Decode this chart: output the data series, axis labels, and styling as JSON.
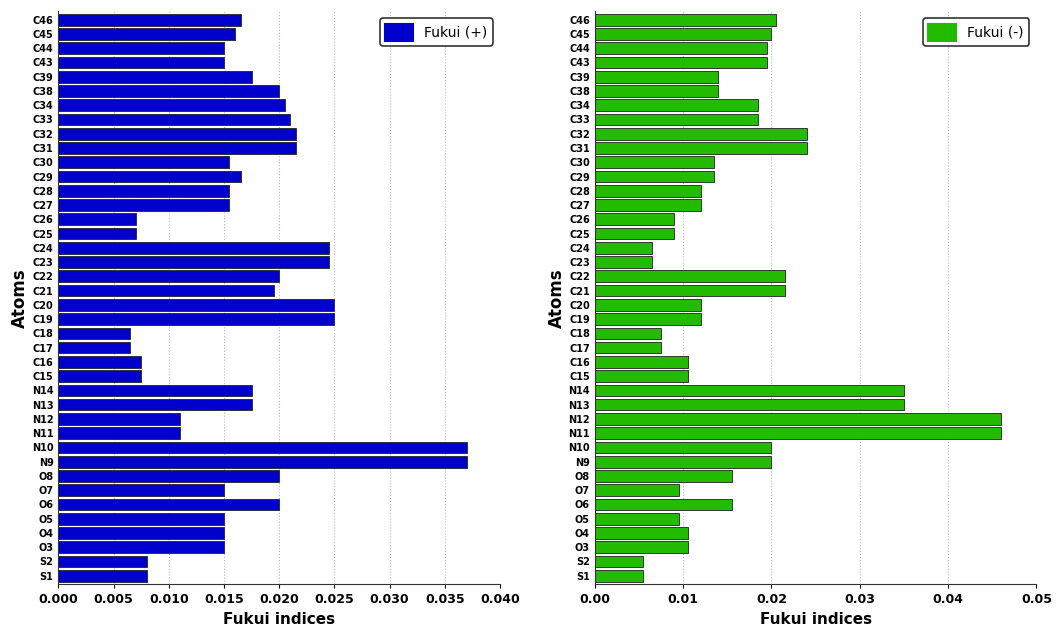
{
  "atoms": [
    "S1",
    "S2",
    "O3",
    "O4",
    "O5",
    "O6",
    "O7",
    "O8",
    "N9",
    "N10",
    "N11",
    "N12",
    "N13",
    "N14",
    "C15",
    "C16",
    "C17",
    "C18",
    "C19",
    "C20",
    "C21",
    "C22",
    "C23",
    "C24",
    "C25",
    "C26",
    "C27",
    "C28",
    "C29",
    "C30",
    "C31",
    "C32",
    "C33",
    "C34",
    "C38",
    "C39",
    "C43",
    "C44",
    "C45",
    "C46"
  ],
  "fukui_plus": [
    0.008,
    0.008,
    0.015,
    0.015,
    0.015,
    0.02,
    0.015,
    0.02,
    0.037,
    0.037,
    0.011,
    0.011,
    0.0175,
    0.0175,
    0.0075,
    0.0075,
    0.0065,
    0.0065,
    0.025,
    0.025,
    0.0195,
    0.02,
    0.0245,
    0.0245,
    0.007,
    0.007,
    0.0155,
    0.0155,
    0.0165,
    0.0155,
    0.0215,
    0.0215,
    0.021,
    0.0205,
    0.02,
    0.0175,
    0.015,
    0.015,
    0.016,
    0.0165
  ],
  "fukui_minus": [
    0.0055,
    0.0055,
    0.0105,
    0.0105,
    0.0095,
    0.0155,
    0.0095,
    0.0155,
    0.02,
    0.02,
    0.046,
    0.046,
    0.035,
    0.035,
    0.0105,
    0.0105,
    0.0075,
    0.0075,
    0.012,
    0.012,
    0.0215,
    0.0215,
    0.0065,
    0.0065,
    0.009,
    0.009,
    0.012,
    0.012,
    0.0135,
    0.0135,
    0.024,
    0.024,
    0.0185,
    0.0185,
    0.014,
    0.014,
    0.0195,
    0.0195,
    0.02,
    0.0205
  ],
  "bar_color_plus": "#0000CC",
  "bar_color_minus": "#22BB00",
  "xlabel": "Fukui indices",
  "ylabel": "Atoms",
  "xlim_plus": [
    0.0,
    0.04
  ],
  "xlim_minus": [
    0.0,
    0.05
  ],
  "xticks_plus": [
    0.0,
    0.005,
    0.01,
    0.015,
    0.02,
    0.025,
    0.03,
    0.035,
    0.04
  ],
  "xtick_labels_plus": [
    "0.000",
    "0.005",
    "0.010",
    "0.015",
    "0.020",
    "0.025",
    "0.030",
    "0.035",
    "0.040"
  ],
  "xticks_minus": [
    0.0,
    0.01,
    0.02,
    0.03,
    0.04,
    0.05
  ],
  "xtick_labels_minus": [
    "0.00",
    "0.01",
    "0.02",
    "0.03",
    "0.04",
    "0.05"
  ],
  "legend_plus": "Fukui (+)",
  "legend_minus": "Fukui (-)",
  "background_color": "#FFFFFF"
}
